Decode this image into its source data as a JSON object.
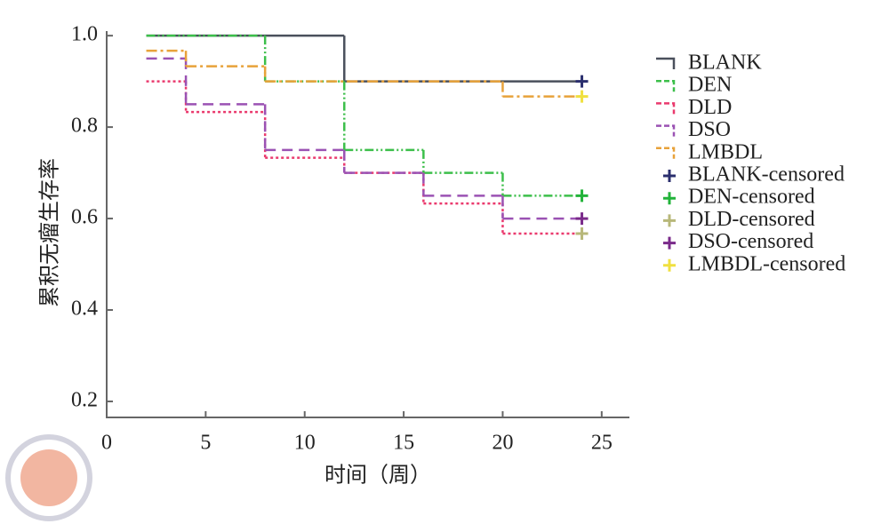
{
  "chart_data": {
    "type": "step",
    "x_label": "时间（周）",
    "y_label": "累积无瘤生存率",
    "xlim": [
      0,
      26.4
    ],
    "ylim": [
      0.165,
      1.01
    ],
    "xticks": [
      0,
      5,
      10,
      15,
      20,
      25
    ],
    "yticks": [
      0.2,
      0.4,
      0.6,
      0.8,
      {
        "value": 1.0,
        "label": "1.0"
      }
    ],
    "legend": "right",
    "series": [
      {
        "name": "BLANK",
        "kind": "step",
        "dash": "solid",
        "color": "#4a505c",
        "x": [
          2,
          12,
          24
        ],
        "values": [
          1.0,
          0.9,
          0.9
        ]
      },
      {
        "name": "DEN",
        "kind": "step",
        "dash": "dash-dot-dot",
        "color": "#3cbf4a",
        "x": [
          2,
          8,
          12,
          16,
          20,
          24
        ],
        "values": [
          1.0,
          0.9,
          0.75,
          0.7,
          0.65,
          0.65
        ]
      },
      {
        "name": "DLD",
        "kind": "step",
        "dash": "dot",
        "color": "#ea3a6e",
        "x": [
          2,
          4,
          8,
          12,
          16,
          20,
          24
        ],
        "values": [
          0.9,
          0.833,
          0.733,
          0.7,
          0.633,
          0.567,
          0.567
        ]
      },
      {
        "name": "DSO",
        "kind": "step",
        "dash": "dash",
        "color": "#9b52b3",
        "x": [
          2,
          4,
          8,
          12,
          16,
          20,
          24
        ],
        "values": [
          0.95,
          0.85,
          0.75,
          0.7,
          0.65,
          0.6,
          0.6
        ]
      },
      {
        "name": "LMBDL",
        "kind": "step",
        "dash": "dash-dot",
        "color": "#e8a23a",
        "x": [
          2,
          4,
          8,
          20,
          24
        ],
        "values": [
          0.967,
          0.933,
          0.9,
          0.867,
          0.867
        ]
      },
      {
        "name": "BLANK-censored",
        "kind": "censored",
        "color": "#2b2f6e",
        "x": [
          24
        ],
        "values": [
          0.9
        ]
      },
      {
        "name": "DEN-censored",
        "kind": "censored",
        "color": "#22b33a",
        "x": [
          24
        ],
        "values": [
          0.65
        ]
      },
      {
        "name": "DLD-censored",
        "kind": "censored",
        "color": "#b8b87a",
        "x": [
          24
        ],
        "values": [
          0.567
        ]
      },
      {
        "name": "DSO-censored",
        "kind": "censored",
        "color": "#7a2a8a",
        "x": [
          24
        ],
        "values": [
          0.6
        ]
      },
      {
        "name": "LMBDL-censored",
        "kind": "censored",
        "color": "#f0e040",
        "x": [
          24
        ],
        "values": [
          0.867
        ]
      }
    ]
  }
}
